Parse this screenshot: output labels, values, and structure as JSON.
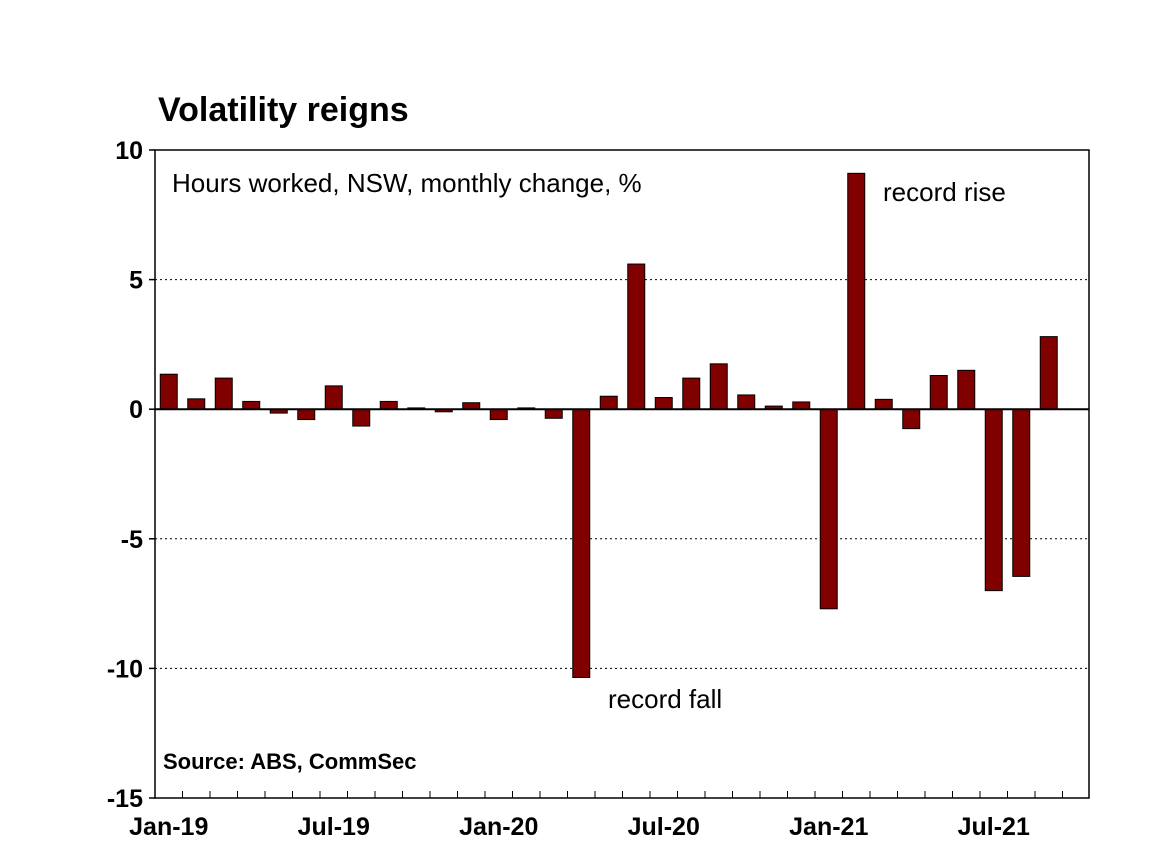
{
  "chart_data": {
    "type": "bar",
    "title": "Volatility reigns",
    "subtitle": "Hours worked, NSW, monthly change, %",
    "source": "Source: ABS, CommSec",
    "ylim": [
      -15,
      10
    ],
    "yticks": [
      10,
      5,
      0,
      -5,
      -10,
      -15
    ],
    "grid": "horizontal dotted",
    "bar_color": "#800000",
    "categories": [
      "Jan-19",
      "Feb-19",
      "Mar-19",
      "Apr-19",
      "May-19",
      "Jun-19",
      "Jul-19",
      "Aug-19",
      "Sep-19",
      "Oct-19",
      "Nov-19",
      "Dec-19",
      "Jan-20",
      "Feb-20",
      "Mar-20",
      "Apr-20",
      "May-20",
      "Jun-20",
      "Jul-20",
      "Aug-20",
      "Sep-20",
      "Oct-20",
      "Nov-20",
      "Dec-20",
      "Jan-21",
      "Feb-21",
      "Mar-21",
      "Apr-21",
      "May-21",
      "Jun-21",
      "Jul-21",
      "Aug-21",
      "Sep-21"
    ],
    "x_tick_labels": [
      "Jan-19",
      "Jul-19",
      "Jan-20",
      "Jul-20",
      "Jan-21",
      "Jul-21"
    ],
    "values": [
      1.35,
      0.4,
      1.2,
      0.3,
      -0.15,
      -0.4,
      0.9,
      -0.65,
      0.3,
      0.05,
      -0.1,
      0.25,
      -0.4,
      0.05,
      -0.35,
      -10.35,
      0.5,
      5.6,
      0.45,
      1.2,
      1.75,
      0.55,
      0.12,
      0.28,
      -7.7,
      9.1,
      0.38,
      -0.75,
      1.3,
      1.5,
      -7.0,
      -6.45,
      2.8
    ],
    "annotations": [
      {
        "text": "record rise",
        "category": "Feb-21"
      },
      {
        "text": "record fall",
        "category": "Apr-20"
      }
    ]
  }
}
